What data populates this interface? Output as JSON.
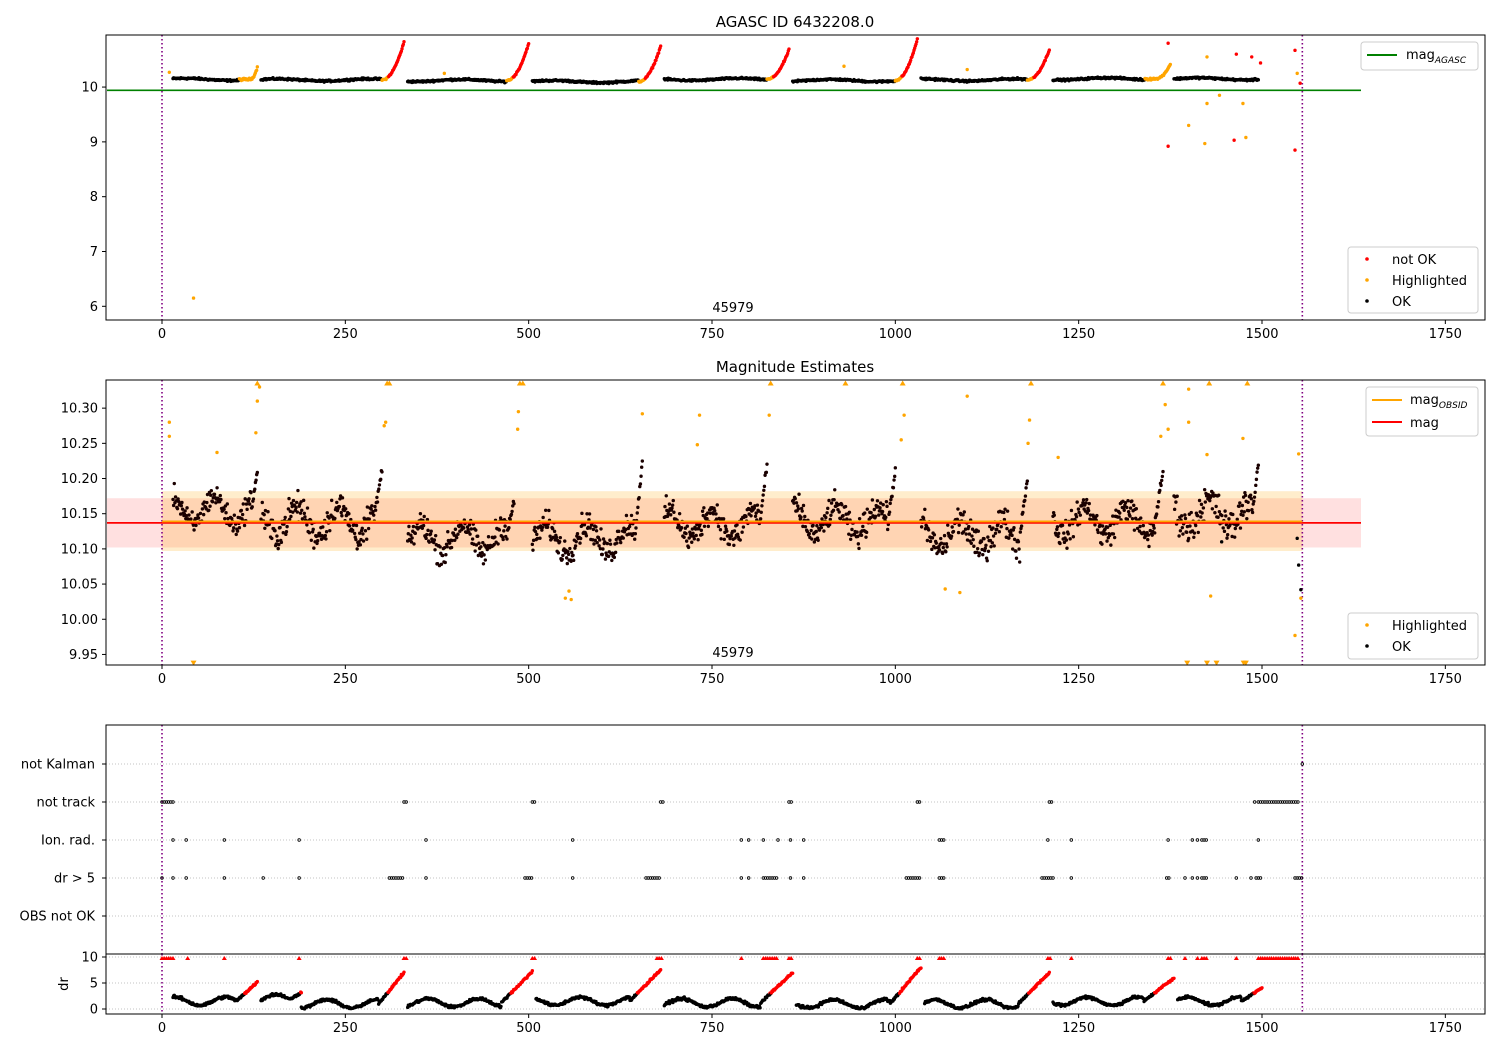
{
  "chart_data": [
    {
      "type": "scatter",
      "title": "AGASC ID 6432208.0",
      "annotation": "45979",
      "xlim": [
        -75,
        1800
      ],
      "ylim": [
        5.75,
        10.95
      ],
      "xticks": [
        "0",
        "250",
        "500",
        "750",
        "1000",
        "1250",
        "1500",
        "1750"
      ],
      "xtick_values": [
        0,
        250,
        500,
        750,
        1000,
        1250,
        1500,
        1750
      ],
      "yticks": [
        "6",
        "7",
        "8",
        "9",
        "10"
      ],
      "ytick_values": [
        6,
        7,
        8,
        9,
        10
      ],
      "vlines": [
        0,
        1555
      ],
      "hline": {
        "name": "mag_AGASC",
        "y": 9.94,
        "x": [
          -75,
          1635
        ],
        "color": "#008000"
      },
      "legend_line": {
        "label": "mag",
        "sub": "AGASC",
        "color": "#008000",
        "loc": "upper right"
      },
      "legend_points": [
        {
          "label": "not OK",
          "color": "#ff0000"
        },
        {
          "label": "Highlighted",
          "color": "#ffa500"
        },
        {
          "label": "OK",
          "color": "#000000"
        }
      ],
      "segments": [
        {
          "x": [
            15,
            130
          ],
          "base": 10.14,
          "rise": 0.2,
          "rise_start": 120,
          "top": 10.36,
          "hi_color": "orange"
        },
        {
          "x": [
            135,
            330
          ],
          "base": 10.13,
          "rise": 0.7,
          "rise_start": 300,
          "top": 10.82,
          "hi_color": "red"
        },
        {
          "x": [
            335,
            500
          ],
          "base": 10.12,
          "rise": 0.7,
          "rise_start": 470,
          "top": 10.8,
          "hi_color": "red"
        },
        {
          "x": [
            505,
            680
          ],
          "base": 10.1,
          "rise": 0.65,
          "rise_start": 650,
          "top": 10.75,
          "hi_color": "red"
        },
        {
          "x": [
            685,
            855
          ],
          "base": 10.14,
          "rise": 0.55,
          "rise_start": 825,
          "top": 10.68,
          "hi_color": "red"
        },
        {
          "x": [
            860,
            1030
          ],
          "base": 10.12,
          "rise": 0.75,
          "rise_start": 1000,
          "top": 10.88,
          "hi_color": "red"
        },
        {
          "x": [
            1035,
            1210
          ],
          "base": 10.13,
          "rise": 0.55,
          "rise_start": 1180,
          "top": 10.68,
          "hi_color": "red"
        },
        {
          "x": [
            1215,
            1375
          ],
          "base": 10.15,
          "rise": 0.28,
          "rise_start": 1355,
          "top": 10.42,
          "hi_color": "orange"
        },
        {
          "x": [
            1380,
            1495
          ],
          "base": 10.15,
          "rise": 0.0,
          "rise_start": 1495,
          "top": 10.2,
          "hi_color": "orange"
        }
      ],
      "outliers": [
        {
          "x": 43,
          "y": 6.15,
          "c": "orange"
        },
        {
          "x": 10,
          "y": 10.27,
          "c": "orange"
        },
        {
          "x": 1372,
          "y": 8.92,
          "c": "red"
        },
        {
          "x": 1372,
          "y": 10.8,
          "c": "red"
        },
        {
          "x": 1400,
          "y": 9.3,
          "c": "orange"
        },
        {
          "x": 1422,
          "y": 8.97,
          "c": "orange"
        },
        {
          "x": 1425,
          "y": 9.7,
          "c": "orange"
        },
        {
          "x": 1425,
          "y": 10.55,
          "c": "orange"
        },
        {
          "x": 1442,
          "y": 9.85,
          "c": "orange"
        },
        {
          "x": 1462,
          "y": 9.03,
          "c": "red"
        },
        {
          "x": 1465,
          "y": 10.6,
          "c": "red"
        },
        {
          "x": 1474,
          "y": 9.7,
          "c": "orange"
        },
        {
          "x": 1478,
          "y": 9.08,
          "c": "orange"
        },
        {
          "x": 1486,
          "y": 10.55,
          "c": "red"
        },
        {
          "x": 1498,
          "y": 10.44,
          "c": "red"
        },
        {
          "x": 1545,
          "y": 8.85,
          "c": "red"
        },
        {
          "x": 1545,
          "y": 10.67,
          "c": "red"
        },
        {
          "x": 1548,
          "y": 10.25,
          "c": "orange"
        },
        {
          "x": 1552,
          "y": 10.07,
          "c": "red"
        },
        {
          "x": 930,
          "y": 10.38,
          "c": "orange"
        },
        {
          "x": 1098,
          "y": 10.32,
          "c": "orange"
        },
        {
          "x": 385,
          "y": 10.25,
          "c": "orange"
        }
      ]
    },
    {
      "type": "scatter",
      "title": "Magnitude Estimates",
      "annotation": "45979",
      "xlim": [
        -75,
        1800
      ],
      "ylim": [
        9.935,
        10.34
      ],
      "xticks": [
        "0",
        "250",
        "500",
        "750",
        "1000",
        "1250",
        "1500",
        "1750"
      ],
      "xtick_values": [
        0,
        250,
        500,
        750,
        1000,
        1250,
        1500,
        1750
      ],
      "yticks": [
        "9.95",
        "10.00",
        "10.05",
        "10.10",
        "10.15",
        "10.20",
        "10.25",
        "10.30"
      ],
      "ytick_values": [
        9.95,
        10.0,
        10.05,
        10.1,
        10.15,
        10.2,
        10.25,
        10.3
      ],
      "vlines": [
        0,
        1555
      ],
      "mag_obsid": {
        "y": 10.139,
        "band": [
          10.097,
          10.182
        ],
        "x": [
          0,
          1555
        ],
        "color": "#ffa500"
      },
      "mag": {
        "y": 10.137,
        "band": [
          10.102,
          10.172
        ],
        "x": [
          -75,
          1635
        ],
        "color": "#ff0000"
      },
      "legend_lines": [
        {
          "label": "mag",
          "sub": "OBSID",
          "color": "#ffa500"
        },
        {
          "label": "mag",
          "sub": "",
          "color": "#ff0000"
        }
      ],
      "legend_points": [
        {
          "label": "Highlighted",
          "color": "#ffa500"
        },
        {
          "label": "OK",
          "color": "#000000"
        }
      ],
      "segments": [
        {
          "x": [
            15,
            130
          ],
          "mean": 10.155,
          "spread": 0.035,
          "tail": 10.21
        },
        {
          "x": [
            135,
            300
          ],
          "mean": 10.14,
          "spread": 0.045,
          "tail": 10.21
        },
        {
          "x": [
            335,
            480
          ],
          "mean": 10.115,
          "spread": 0.04,
          "tail": 10.17
        },
        {
          "x": [
            505,
            655
          ],
          "mean": 10.115,
          "spread": 0.04,
          "tail": 10.22
        },
        {
          "x": [
            685,
            825
          ],
          "mean": 10.135,
          "spread": 0.04,
          "tail": 10.22
        },
        {
          "x": [
            860,
            1000
          ],
          "mean": 10.14,
          "spread": 0.04,
          "tail": 10.21
        },
        {
          "x": [
            1035,
            1180
          ],
          "mean": 10.12,
          "spread": 0.045,
          "tail": 10.2
        },
        {
          "x": [
            1215,
            1365
          ],
          "mean": 10.14,
          "spread": 0.04,
          "tail": 10.21
        },
        {
          "x": [
            1380,
            1495
          ],
          "mean": 10.15,
          "spread": 0.05,
          "tail": 10.22
        }
      ],
      "highlighted": [
        {
          "x": 10,
          "y": 10.28
        },
        {
          "x": 10,
          "y": 10.26
        },
        {
          "x": 43,
          "y": 9.937
        },
        {
          "x": 75,
          "y": 10.237
        },
        {
          "x": 130,
          "y": 10.31
        },
        {
          "x": 130,
          "y": 10.335
        },
        {
          "x": 133,
          "y": 10.33
        },
        {
          "x": 128,
          "y": 10.265
        },
        {
          "x": 305,
          "y": 10.28
        },
        {
          "x": 307,
          "y": 10.335
        },
        {
          "x": 310,
          "y": 10.335
        },
        {
          "x": 303,
          "y": 10.275
        },
        {
          "x": 485,
          "y": 10.27
        },
        {
          "x": 488,
          "y": 10.335
        },
        {
          "x": 492,
          "y": 10.335
        },
        {
          "x": 486,
          "y": 10.295
        },
        {
          "x": 550,
          "y": 10.03
        },
        {
          "x": 555,
          "y": 10.04
        },
        {
          "x": 558,
          "y": 10.028
        },
        {
          "x": 655,
          "y": 10.292
        },
        {
          "x": 733,
          "y": 10.29
        },
        {
          "x": 730,
          "y": 10.248
        },
        {
          "x": 830,
          "y": 10.335
        },
        {
          "x": 828,
          "y": 10.29
        },
        {
          "x": 932,
          "y": 10.335
        },
        {
          "x": 1010,
          "y": 10.335
        },
        {
          "x": 1012,
          "y": 10.29
        },
        {
          "x": 1008,
          "y": 10.255
        },
        {
          "x": 1068,
          "y": 10.043
        },
        {
          "x": 1088,
          "y": 10.038
        },
        {
          "x": 1098,
          "y": 10.317
        },
        {
          "x": 1185,
          "y": 10.335
        },
        {
          "x": 1183,
          "y": 10.283
        },
        {
          "x": 1181,
          "y": 10.25
        },
        {
          "x": 1222,
          "y": 10.23
        },
        {
          "x": 1365,
          "y": 10.335
        },
        {
          "x": 1368,
          "y": 10.305
        },
        {
          "x": 1362,
          "y": 10.26
        },
        {
          "x": 1372,
          "y": 10.27
        },
        {
          "x": 1398,
          "y": 9.937
        },
        {
          "x": 1400,
          "y": 10.327
        },
        {
          "x": 1400,
          "y": 10.28
        },
        {
          "x": 1425,
          "y": 9.937
        },
        {
          "x": 1428,
          "y": 10.335
        },
        {
          "x": 1430,
          "y": 10.033
        },
        {
          "x": 1438,
          "y": 9.937
        },
        {
          "x": 1474,
          "y": 10.257
        },
        {
          "x": 1475,
          "y": 9.937
        },
        {
          "x": 1478,
          "y": 9.937
        },
        {
          "x": 1480,
          "y": 10.335
        },
        {
          "x": 1425,
          "y": 10.234
        },
        {
          "x": 1545,
          "y": 9.977
        },
        {
          "x": 1550,
          "y": 10.235
        },
        {
          "x": 1553,
          "y": 10.03
        }
      ],
      "ok_outliers": [
        {
          "x": 1548,
          "y": 10.115
        },
        {
          "x": 1553,
          "y": 10.042
        },
        {
          "x": 1550,
          "y": 10.077
        },
        {
          "x": 1445,
          "y": 10.11
        }
      ]
    },
    {
      "type": "scatter",
      "title": "",
      "xlim": [
        -75,
        1800
      ],
      "xticks": [
        "0",
        "250",
        "500",
        "750",
        "1000",
        "1250",
        "1500",
        "1750"
      ],
      "xtick_values": [
        0,
        250,
        500,
        750,
        1000,
        1250,
        1500,
        1750
      ],
      "vlines": [
        0,
        1555
      ],
      "flag_rows": [
        "not Kalman",
        "not track",
        "Ion. rad.",
        "dr > 5",
        "OBS not OK"
      ],
      "flags": {
        "not Kalman": [
          [
            1555,
            1555
          ]
        ],
        "not track": [
          [
            0,
            15
          ],
          [
            330,
            335
          ],
          [
            505,
            510
          ],
          [
            680,
            685
          ],
          [
            855,
            860
          ],
          [
            1030,
            1035
          ],
          [
            1210,
            1215
          ],
          [
            1490,
            1492
          ],
          [
            1495,
            1550
          ]
        ],
        "Ion. rad.": [
          [
            15,
            15
          ],
          [
            33,
            33
          ],
          [
            85,
            85
          ],
          [
            187,
            187
          ],
          [
            360,
            360
          ],
          [
            560,
            560
          ],
          [
            790,
            790
          ],
          [
            800,
            800
          ],
          [
            820,
            820
          ],
          [
            840,
            840
          ],
          [
            857,
            857
          ],
          [
            875,
            875
          ],
          [
            1060,
            1066
          ],
          [
            1208,
            1208
          ],
          [
            1240,
            1240
          ],
          [
            1372,
            1372
          ],
          [
            1405,
            1405
          ],
          [
            1412,
            1412
          ],
          [
            1418,
            1425
          ],
          [
            1495,
            1495
          ]
        ],
        "dr > 5": [
          [
            0,
            0
          ],
          [
            15,
            15
          ],
          [
            33,
            33
          ],
          [
            85,
            85
          ],
          [
            138,
            138
          ],
          [
            187,
            187
          ],
          [
            310,
            330
          ],
          [
            360,
            360
          ],
          [
            495,
            505
          ],
          [
            560,
            560
          ],
          [
            660,
            680
          ],
          [
            790,
            790
          ],
          [
            800,
            800
          ],
          [
            820,
            840
          ],
          [
            857,
            857
          ],
          [
            875,
            875
          ],
          [
            1015,
            1035
          ],
          [
            1060,
            1066
          ],
          [
            1200,
            1215
          ],
          [
            1240,
            1240
          ],
          [
            1370,
            1375
          ],
          [
            1395,
            1395
          ],
          [
            1405,
            1405
          ],
          [
            1412,
            1412
          ],
          [
            1418,
            1425
          ],
          [
            1465,
            1465
          ],
          [
            1485,
            1485
          ],
          [
            1492,
            1498
          ],
          [
            1545,
            1555
          ]
        ]
      },
      "dr": {
        "ylabel": "dr",
        "yticks": [
          "0",
          "5",
          "10"
        ],
        "ytick_values": [
          0,
          5,
          10
        ],
        "ylim": [
          -0.5,
          10.5
        ],
        "segments": [
          {
            "x": [
              15,
              130
            ],
            "base": 1.5,
            "top": 5.2
          },
          {
            "x": [
              135,
              190
            ],
            "base": 2.0,
            "top": 3.2
          },
          {
            "x": [
              190,
              330
            ],
            "base": 1.0,
            "top": 7.0
          },
          {
            "x": [
              335,
              505
            ],
            "base": 1.2,
            "top": 7.2
          },
          {
            "x": [
              510,
              680
            ],
            "base": 1.5,
            "top": 7.5
          },
          {
            "x": [
              685,
              860
            ],
            "base": 1.2,
            "top": 7.0
          },
          {
            "x": [
              865,
              1035
            ],
            "base": 1.0,
            "top": 8.0
          },
          {
            "x": [
              1040,
              1210
            ],
            "base": 1.0,
            "top": 7.0
          },
          {
            "x": [
              1215,
              1380
            ],
            "base": 1.5,
            "top": 6.0
          },
          {
            "x": [
              1385,
              1500
            ],
            "base": 1.5,
            "top": 4.0
          }
        ],
        "clipped": [
          [
            0,
            15
          ],
          [
            35,
            35
          ],
          [
            85,
            85
          ],
          [
            187,
            187
          ],
          [
            330,
            335
          ],
          [
            505,
            510
          ],
          [
            675,
            682
          ],
          [
            790,
            790
          ],
          [
            820,
            840
          ],
          [
            855,
            860
          ],
          [
            1030,
            1035
          ],
          [
            1060,
            1066
          ],
          [
            1208,
            1212
          ],
          [
            1240,
            1240
          ],
          [
            1372,
            1375
          ],
          [
            1395,
            1395
          ],
          [
            1412,
            1412
          ],
          [
            1418,
            1425
          ],
          [
            1465,
            1465
          ],
          [
            1495,
            1550
          ]
        ]
      }
    }
  ]
}
